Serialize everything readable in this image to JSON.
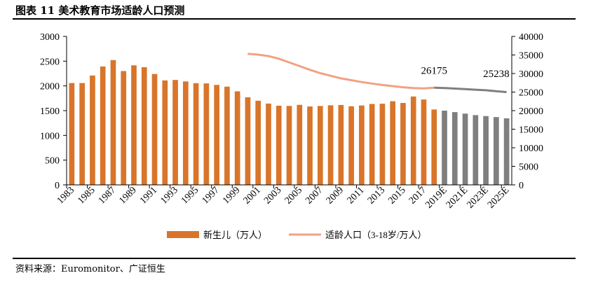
{
  "figure": {
    "title": "图表 11 美术教育市场适龄人口预测",
    "source": "资料来源：Euromonitor、广证恒生"
  },
  "colors": {
    "bar_actual": "#D9752A",
    "bar_forecast": "#7F7F7F",
    "line_actual": "#F0A283",
    "line_forecast": "#7F7F7F"
  },
  "chart_data": {
    "type": "bar",
    "categories": [
      "1983",
      "1984",
      "1985",
      "1986",
      "1987",
      "1988",
      "1989",
      "1990",
      "1991",
      "1992",
      "1993",
      "1994",
      "1995",
      "1996",
      "1997",
      "1998",
      "1999",
      "2000",
      "2001",
      "2002",
      "2003",
      "2004",
      "2005",
      "2006",
      "2007",
      "2008",
      "2009",
      "2010",
      "2011",
      "2012",
      "2013",
      "2014",
      "2015",
      "2016",
      "2017",
      "2018",
      "2019E",
      "2020E",
      "2021E",
      "2022E",
      "2023E",
      "2024E",
      "2025E"
    ],
    "x_tick_labels": [
      "1983",
      "1985",
      "1987",
      "1989",
      "1991",
      "1993",
      "1995",
      "1997",
      "1999",
      "2001",
      "2003",
      "2005",
      "2007",
      "2009",
      "2011",
      "2013",
      "2015",
      "2017",
      "2019E",
      "2021E",
      "2023E",
      "2025E"
    ],
    "forecast_start": "2019E",
    "series": [
      {
        "name": "新生儿（万人）",
        "type": "bar",
        "axis": "left",
        "values": [
          2058,
          2058,
          2210,
          2392,
          2522,
          2300,
          2416,
          2378,
          2240,
          2111,
          2120,
          2090,
          2055,
          2050,
          2020,
          1985,
          1890,
          1770,
          1700,
          1643,
          1600,
          1595,
          1617,
          1584,
          1594,
          1608,
          1615,
          1588,
          1604,
          1635,
          1640,
          1690,
          1655,
          1786,
          1725,
          1523,
          1500,
          1470,
          1440,
          1410,
          1390,
          1370,
          1345
        ]
      },
      {
        "name": "适龄人口（3-18岁/万人）",
        "type": "line",
        "axis": "right",
        "x": [
          "2000",
          "2001",
          "2002",
          "2003",
          "2004",
          "2005",
          "2006",
          "2007",
          "2008",
          "2009",
          "2010",
          "2011",
          "2012",
          "2013",
          "2014",
          "2015",
          "2016",
          "2017",
          "2018",
          "2019E",
          "2020E",
          "2021E",
          "2022E",
          "2023E",
          "2024E",
          "2025E"
        ],
        "values": [
          35300,
          35100,
          34700,
          34000,
          33000,
          32000,
          31000,
          30100,
          29400,
          28700,
          28200,
          27700,
          27300,
          26900,
          26600,
          26300,
          26100,
          26000,
          26175,
          26100,
          25950,
          25800,
          25650,
          25500,
          25238,
          25000
        ]
      }
    ],
    "y_left": {
      "min": 0,
      "max": 3000,
      "ticks": [
        0,
        500,
        1000,
        1500,
        2000,
        2500,
        3000
      ]
    },
    "y_right": {
      "min": 0,
      "max": 40000,
      "ticks": [
        0,
        5000,
        10000,
        15000,
        20000,
        25000,
        30000,
        35000,
        40000
      ]
    },
    "annotations": [
      {
        "text": "26175",
        "at": "2018"
      },
      {
        "text": "25238",
        "at": "2024E"
      }
    ],
    "legend": {
      "position": "bottom",
      "bar_label": "新生儿（万人）",
      "line_label": "适龄人口（3-18岁/万人）"
    },
    "grid": false
  }
}
